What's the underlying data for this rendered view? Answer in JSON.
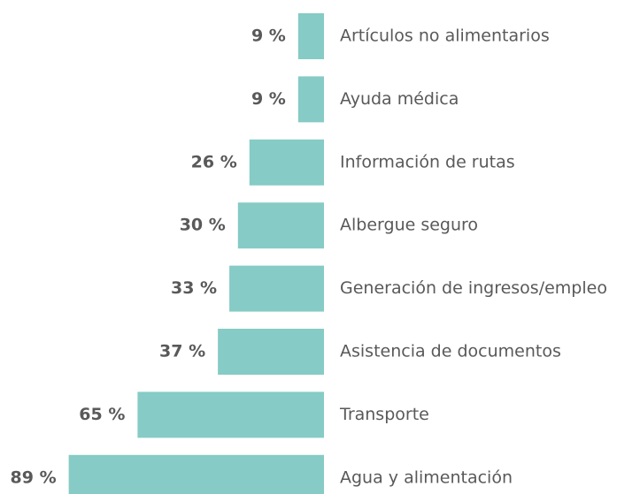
{
  "chart_data": {
    "type": "bar",
    "orientation": "horizontal",
    "categories": [
      "Artículos no alimentarios",
      "Ayuda médica",
      "Información de rutas",
      "Albergue seguro",
      "Generación de ingresos/empleo",
      "Asistencia de documentos",
      "Transporte",
      "Agua y alimentación"
    ],
    "values": [
      9,
      9,
      26,
      30,
      33,
      37,
      65,
      89
    ],
    "value_labels": [
      "9 %",
      "9 %",
      "26 %",
      "30 %",
      "33 %",
      "37 %",
      "65 %",
      "89 %"
    ],
    "color": "#86cbc5"
  }
}
